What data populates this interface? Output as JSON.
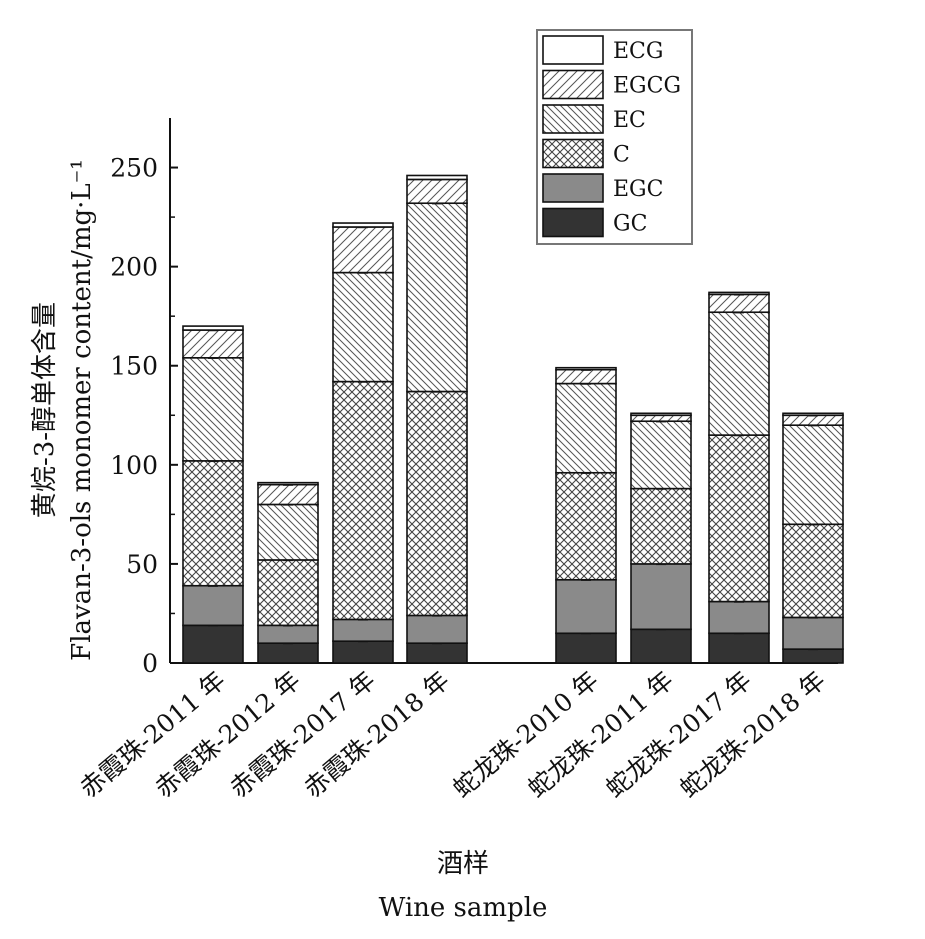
{
  "chart_data": {
    "type": "bar",
    "stacked": true,
    "title": "",
    "xlabel_cn": "酒样",
    "xlabel": "Wine sample",
    "ylabel_cn": "黄烷-3-醇单体含量",
    "ylabel": "Flavan-3-ols monomer content/mg·L⁻¹",
    "ylim": [
      0,
      275
    ],
    "yticks": [
      0,
      50,
      100,
      150,
      200,
      250
    ],
    "legend_position": "top-right",
    "groups": [
      {
        "categories": [
          "赤霞珠-2011 年",
          "赤霞珠-2012 年",
          "赤霞珠-2017 年",
          "赤霞珠-2018 年"
        ]
      },
      {
        "categories": [
          "蛇龙珠-2010 年",
          "蛇龙珠-2011 年",
          "蛇龙珠-2017 年",
          "蛇龙珠-2018 年"
        ]
      }
    ],
    "categories": [
      "赤霞珠-2011 年",
      "赤霞珠-2012 年",
      "赤霞珠-2017 年",
      "赤霞珠-2018 年",
      "蛇龙珠-2010 年",
      "蛇龙珠-2011 年",
      "蛇龙珠-2017 年",
      "蛇龙珠-2018 年"
    ],
    "series": [
      {
        "name": "GC",
        "values": [
          19,
          10,
          11,
          10,
          15,
          17,
          15,
          7
        ],
        "fill": "#333333"
      },
      {
        "name": "EGC",
        "values": [
          20,
          9,
          11,
          14,
          27,
          33,
          16,
          16
        ],
        "fill": "#8a8a8a"
      },
      {
        "name": "C",
        "values": [
          63,
          33,
          120,
          113,
          54,
          38,
          84,
          47
        ],
        "fill": "crosshatch"
      },
      {
        "name": "EC",
        "values": [
          52,
          28,
          55,
          95,
          45,
          34,
          62,
          50
        ],
        "fill": "backslash-hatch"
      },
      {
        "name": "EGCG",
        "values": [
          14,
          10,
          23,
          12,
          7,
          3,
          9,
          5
        ],
        "fill": "slash-hatch"
      },
      {
        "name": "ECG",
        "values": [
          2,
          1,
          2,
          2,
          1,
          1,
          1,
          1
        ],
        "fill": "#ffffff"
      }
    ]
  }
}
